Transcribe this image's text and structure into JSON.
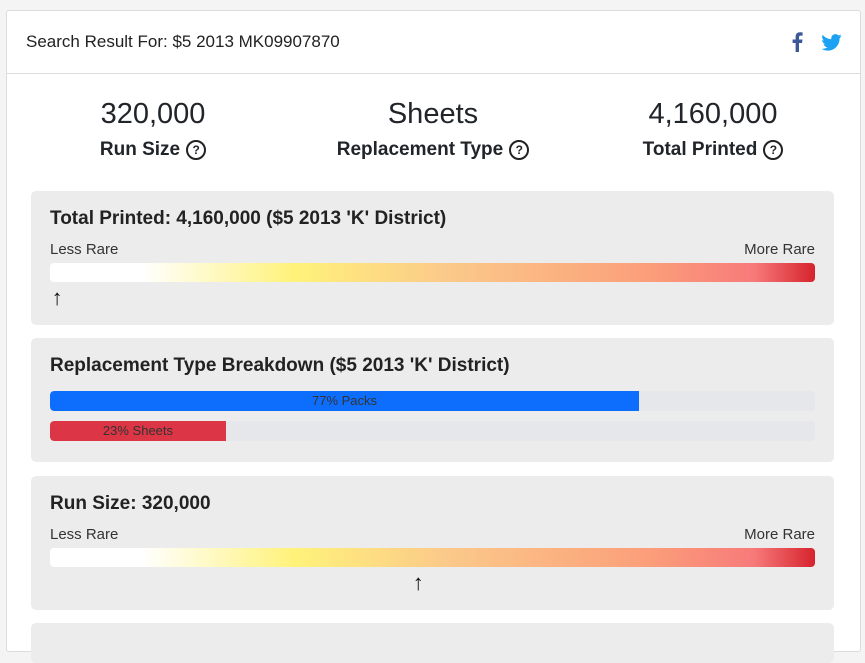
{
  "header": {
    "title": "Search Result For: $5 2013 MK09907870"
  },
  "social": {
    "facebook": "facebook-icon",
    "twitter": "twitter-icon",
    "facebook_color": "#3b5998",
    "twitter_color": "#1da1f2"
  },
  "stats": [
    {
      "value": "320,000",
      "label": "Run Size"
    },
    {
      "value": "Sheets",
      "label": "Replacement Type"
    },
    {
      "value": "4,160,000",
      "label": "Total Printed"
    }
  ],
  "total_printed_panel": {
    "title": "Total Printed: 4,160,000 ($5 2013 'K' District)",
    "less_rare": "Less Rare",
    "more_rare": "More Rare",
    "marker_position": 0.01
  },
  "breakdown_panel": {
    "title": "Replacement Type Breakdown ($5 2013 'K' District)",
    "bars": [
      {
        "label": "77% Packs",
        "percent": 77,
        "color": "#0d6efd"
      },
      {
        "label": "23% Sheets",
        "percent": 23,
        "color": "#dc3545"
      }
    ]
  },
  "run_size_panel": {
    "title": "Run Size: 320,000",
    "less_rare": "Less Rare",
    "more_rare": "More Rare",
    "marker_position": 0.482
  }
}
